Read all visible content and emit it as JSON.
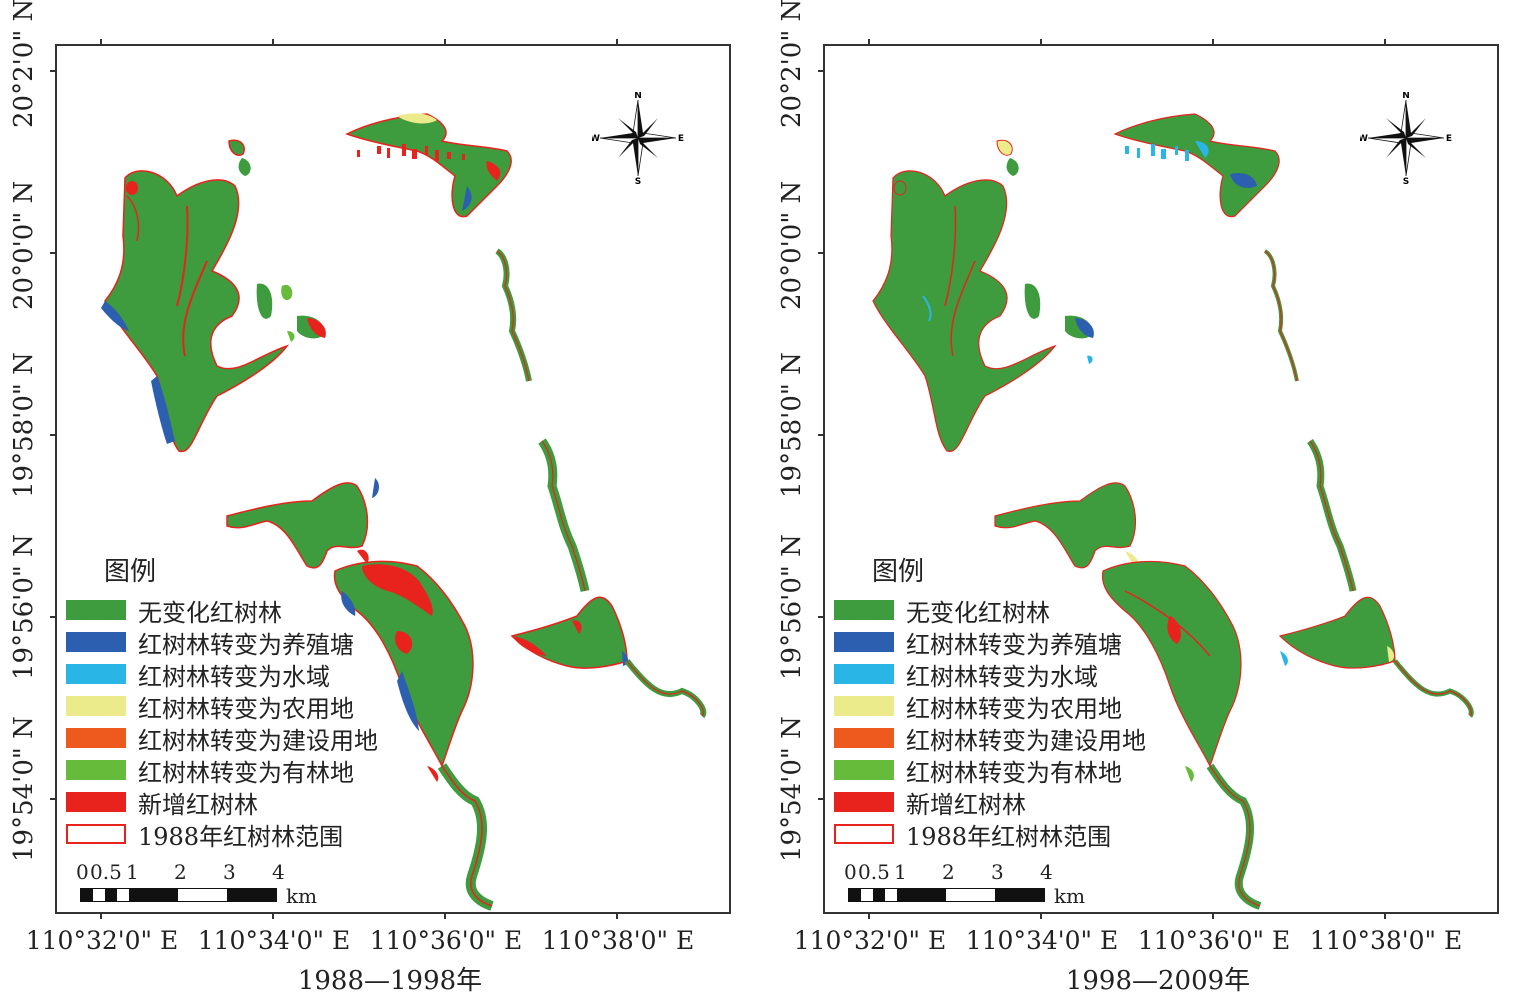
{
  "legend": {
    "title": "图例",
    "items": [
      {
        "label": "无变化红树林",
        "color": "#3e9b3e",
        "outline": false
      },
      {
        "label": "红树林转变为养殖塘",
        "color": "#2d5fb0",
        "outline": false
      },
      {
        "label": "红树林转变为水域",
        "color": "#29b6e6",
        "outline": false
      },
      {
        "label": "红树林转变为农用地",
        "color": "#ebeb8c",
        "outline": false
      },
      {
        "label": "红树林转变为建设用地",
        "color": "#ee5a1e",
        "outline": false
      },
      {
        "label": "红树林转变为有林地",
        "color": "#66bb3a",
        "outline": false
      },
      {
        "label": "新增红树林",
        "color": "#e8231e",
        "outline": false
      },
      {
        "label": "1988年红树林范围",
        "color": "#ffffff",
        "outline": true
      }
    ]
  },
  "axes": {
    "lat_labels": [
      "20°2'0\" N",
      "20°0'0\" N",
      "19°58'0\" N",
      "19°56'0\" N",
      "19°54'0\" N"
    ],
    "lon_labels": [
      "110°32'0\" E",
      "110°34'0\" E",
      "110°36'0\" E",
      "110°38'0\" E"
    ]
  },
  "scale": {
    "numbers": [
      "0",
      "0.5",
      "1",
      "2",
      "3",
      "4"
    ],
    "unit": "km"
  },
  "compass": {
    "n": "N",
    "s": "S",
    "e": "E",
    "w": "W"
  },
  "panels": [
    {
      "period": "1988—1998年",
      "variant": "early"
    },
    {
      "period": "1998—2009年",
      "variant": "late"
    }
  ]
}
